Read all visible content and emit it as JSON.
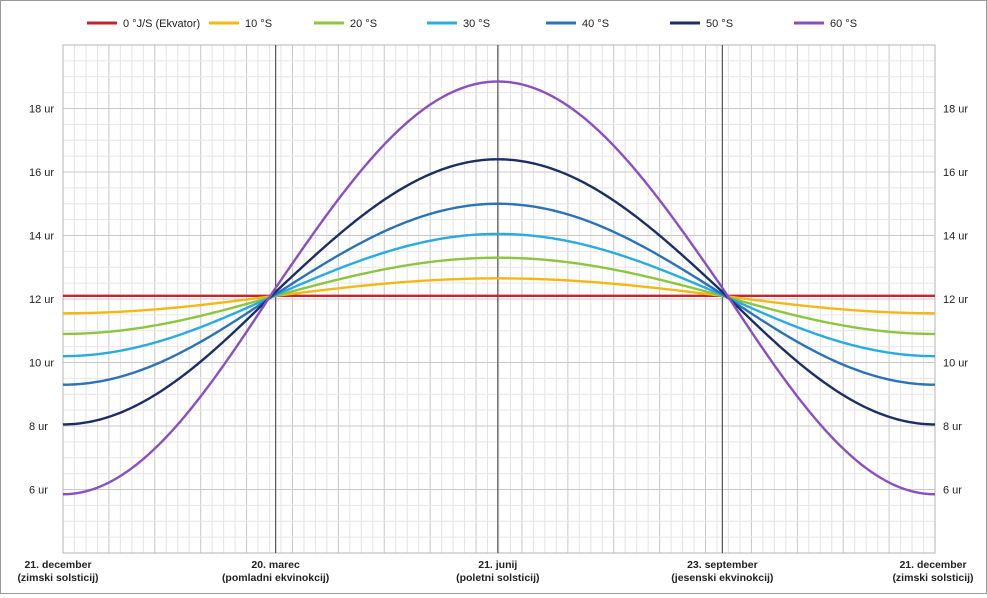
{
  "chart_data": {
    "type": "line",
    "title": "",
    "xlabel": "",
    "ylabel": "",
    "y_unit_suffix": " ur",
    "ylim": [
      4,
      20
    ],
    "yticks": [
      6,
      8,
      10,
      12,
      14,
      16,
      18
    ],
    "x_period_days": 365,
    "x_categories": [
      {
        "day": 0,
        "line1": "21. december",
        "line2": "(zimski solsticij)"
      },
      {
        "day": 89,
        "line1": "20. marec",
        "line2": "(pomladni ekvinokcij)"
      },
      {
        "day": 182,
        "line1": "21. junij",
        "line2": "(poletni solsticij)"
      },
      {
        "day": 276,
        "line1": "23. september",
        "line2": "(jesenski ekvinokcij)"
      },
      {
        "day": 365,
        "line1": "21. december",
        "line2": "(zimski solsticij)"
      }
    ],
    "grid": true,
    "legend_position": "top",
    "series": [
      {
        "name": "0 °J/S (Ekvator)",
        "color": "#c0272d",
        "min": 12.1,
        "max": 12.1
      },
      {
        "name": "10 °S",
        "color": "#f4b816",
        "min": 11.55,
        "max": 12.65
      },
      {
        "name": "20 °S",
        "color": "#8cc63f",
        "min": 10.9,
        "max": 13.3
      },
      {
        "name": "30 °S",
        "color": "#29abe2",
        "min": 10.2,
        "max": 14.05
      },
      {
        "name": "40 °S",
        "color": "#2a73b8",
        "min": 9.3,
        "max": 15.0
      },
      {
        "name": "50 °S",
        "color": "#1b2f66",
        "min": 8.05,
        "max": 16.4
      },
      {
        "name": "60 °S",
        "color": "#8a4fc0",
        "min": 5.85,
        "max": 18.85
      }
    ]
  }
}
